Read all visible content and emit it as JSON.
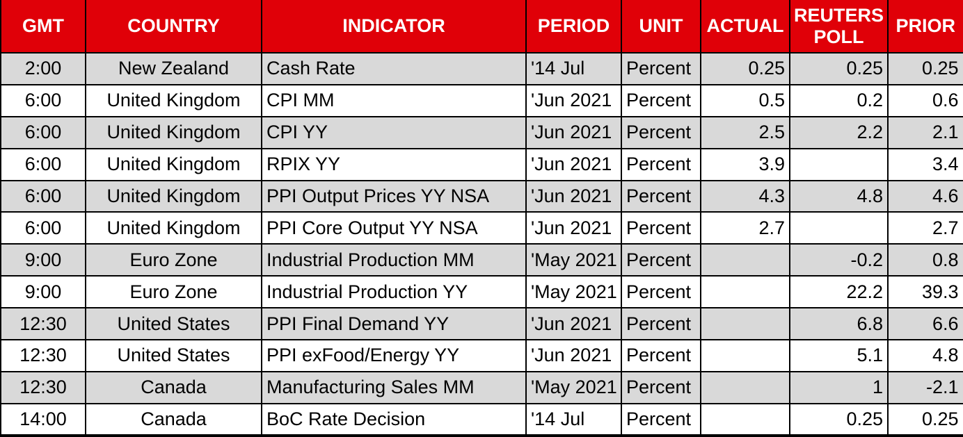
{
  "colors": {
    "header_bg": "#E00008",
    "header_text": "#FFFFFF",
    "row_shaded_bg": "#D9D9D9",
    "row_plain_bg": "#FFFFFF",
    "grid_border": "#000000",
    "body_text": "#000000"
  },
  "chart_data": {
    "type": "table",
    "columns": [
      {
        "id": "gmt",
        "label": "GMT",
        "align": "center"
      },
      {
        "id": "country",
        "label": "COUNTRY",
        "align": "center"
      },
      {
        "id": "indicator",
        "label": "INDICATOR",
        "align": "left"
      },
      {
        "id": "period",
        "label": "PERIOD",
        "align": "left"
      },
      {
        "id": "unit",
        "label": "UNIT",
        "align": "left"
      },
      {
        "id": "actual",
        "label": "ACTUAL",
        "align": "right"
      },
      {
        "id": "reuters_poll",
        "label": "REUTERS POLL",
        "align": "right"
      },
      {
        "id": "prior",
        "label": "PRIOR",
        "align": "right"
      }
    ],
    "rows": [
      {
        "gmt": "2:00",
        "country": "New Zealand",
        "indicator": "Cash Rate",
        "period": "'14 Jul",
        "unit": "Percent",
        "actual": "0.25",
        "reuters_poll": "0.25",
        "prior": "0.25"
      },
      {
        "gmt": "6:00",
        "country": "United Kingdom",
        "indicator": "CPI MM",
        "period": "'Jun 2021",
        "unit": "Percent",
        "actual": "0.5",
        "reuters_poll": "0.2",
        "prior": "0.6"
      },
      {
        "gmt": "6:00",
        "country": "United Kingdom",
        "indicator": "CPI YY",
        "period": "'Jun 2021",
        "unit": "Percent",
        "actual": "2.5",
        "reuters_poll": "2.2",
        "prior": "2.1"
      },
      {
        "gmt": "6:00",
        "country": "United Kingdom",
        "indicator": "RPIX YY",
        "period": "'Jun 2021",
        "unit": "Percent",
        "actual": "3.9",
        "reuters_poll": "",
        "prior": "3.4"
      },
      {
        "gmt": "6:00",
        "country": "United Kingdom",
        "indicator": "PPI Output Prices YY NSA",
        "period": "'Jun 2021",
        "unit": "Percent",
        "actual": "4.3",
        "reuters_poll": "4.8",
        "prior": "4.6"
      },
      {
        "gmt": "6:00",
        "country": "United Kingdom",
        "indicator": "PPI Core Output YY NSA",
        "period": "'Jun 2021",
        "unit": "Percent",
        "actual": "2.7",
        "reuters_poll": "",
        "prior": "2.7"
      },
      {
        "gmt": "9:00",
        "country": "Euro Zone",
        "indicator": "Industrial Production MM",
        "period": "'May 2021",
        "unit": "Percent",
        "actual": "",
        "reuters_poll": "-0.2",
        "prior": "0.8"
      },
      {
        "gmt": "9:00",
        "country": "Euro Zone",
        "indicator": "Industrial Production YY",
        "period": "'May 2021",
        "unit": "Percent",
        "actual": "",
        "reuters_poll": "22.2",
        "prior": "39.3"
      },
      {
        "gmt": "12:30",
        "country": "United States",
        "indicator": "PPI Final Demand YY",
        "period": "'Jun 2021",
        "unit": "Percent",
        "actual": "",
        "reuters_poll": "6.8",
        "prior": "6.6"
      },
      {
        "gmt": "12:30",
        "country": "United States",
        "indicator": "PPI exFood/Energy YY",
        "period": "'Jun 2021",
        "unit": "Percent",
        "actual": "",
        "reuters_poll": "5.1",
        "prior": "4.8"
      },
      {
        "gmt": "12:30",
        "country": "Canada",
        "indicator": "Manufacturing Sales MM",
        "period": "'May 2021",
        "unit": "Percent",
        "actual": "",
        "reuters_poll": "1",
        "prior": "-2.1"
      },
      {
        "gmt": "14:00",
        "country": "Canada",
        "indicator": "BoC Rate Decision",
        "period": "'14 Jul",
        "unit": "Percent",
        "actual": "",
        "reuters_poll": "0.25",
        "prior": "0.25"
      }
    ]
  }
}
